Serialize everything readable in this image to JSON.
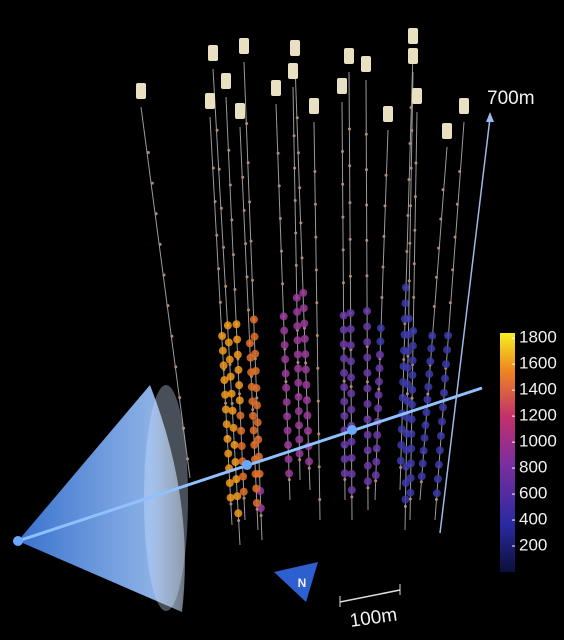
{
  "scale_labels": {
    "depth": "700m",
    "horizontal": "100m"
  },
  "compass": "N",
  "colorbar": {
    "lim": [
      0,
      1840
    ],
    "ticks": [
      200,
      400,
      600,
      800,
      1000,
      1200,
      1400,
      1600,
      1800
    ]
  }
}
